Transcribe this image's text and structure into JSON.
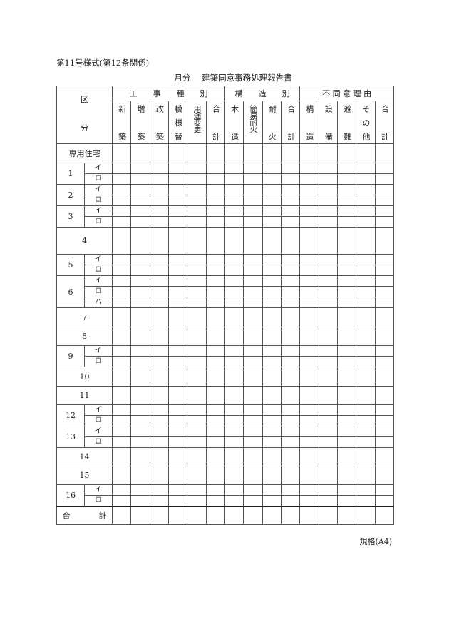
{
  "form_number": "第11号様式(第12条関係)",
  "title": {
    "prefix": "月分",
    "main": "建築同意事務処理報告書"
  },
  "header": {
    "kubun_top": "区",
    "kubun_bottom": "分",
    "groups": [
      {
        "label": "工　　事　　種　　別",
        "columns": [
          "新築",
          "増築",
          "改築",
          "模様替",
          "用途変更",
          "合計"
        ]
      },
      {
        "label": "構　　造　　別",
        "columns": [
          "木造",
          "簡易耐火",
          "耐火",
          "合計"
        ]
      },
      {
        "label": "不 同 意 理 由",
        "columns": [
          "構造",
          "設備",
          "避難",
          "その他",
          "合計"
        ]
      }
    ]
  },
  "rows": [
    {
      "label": "専用住宅",
      "subs": []
    },
    {
      "label": "1",
      "subs": [
        "イ",
        "ロ"
      ]
    },
    {
      "label": "2",
      "subs": [
        "イ",
        "ロ"
      ]
    },
    {
      "label": "3",
      "subs": [
        "イ",
        "ロ"
      ]
    },
    {
      "label": "4",
      "subs": []
    },
    {
      "label": "5",
      "subs": [
        "イ",
        "ロ"
      ]
    },
    {
      "label": "6",
      "subs": [
        "イ",
        "ロ",
        "ハ"
      ]
    },
    {
      "label": "7",
      "subs": []
    },
    {
      "label": "8",
      "subs": []
    },
    {
      "label": "9",
      "subs": [
        "イ",
        "ロ"
      ]
    },
    {
      "label": "10",
      "subs": []
    },
    {
      "label": "11",
      "subs": []
    },
    {
      "label": "12",
      "subs": [
        "イ",
        "ロ"
      ]
    },
    {
      "label": "13",
      "subs": [
        "イ",
        "ロ"
      ]
    },
    {
      "label": "14",
      "subs": []
    },
    {
      "label": "15",
      "subs": []
    },
    {
      "label": "16",
      "subs": [
        "イ",
        "ロ"
      ]
    }
  ],
  "total": {
    "left": "合",
    "right": "計"
  },
  "spec": "規格(A4)"
}
